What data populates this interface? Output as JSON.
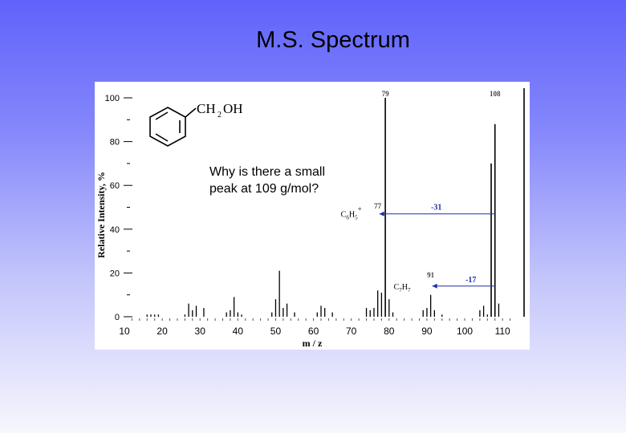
{
  "slide": {
    "title": "M.S. Spectrum",
    "question": "Why is there a small peak at 109 g/mol?"
  },
  "molecule": {
    "formula_main": "CH",
    "formula_sub": "2",
    "formula_tail": "OH"
  },
  "chart_data": {
    "type": "bar",
    "xlabel": "m / z",
    "ylabel": "Relative Intensity, %",
    "xlim": [
      10,
      114
    ],
    "ylim": [
      0,
      100
    ],
    "x_ticks": [
      10,
      20,
      30,
      40,
      50,
      60,
      70,
      80,
      90,
      100,
      110
    ],
    "y_ticks": [
      0,
      20,
      40,
      60,
      80,
      100
    ],
    "peaks": [
      {
        "x": 16,
        "y": 1
      },
      {
        "x": 17,
        "y": 1
      },
      {
        "x": 18,
        "y": 1
      },
      {
        "x": 19,
        "y": 1
      },
      {
        "x": 26,
        "y": 1
      },
      {
        "x": 27,
        "y": 6
      },
      {
        "x": 28,
        "y": 3
      },
      {
        "x": 29,
        "y": 5
      },
      {
        "x": 31,
        "y": 4
      },
      {
        "x": 37,
        "y": 2
      },
      {
        "x": 38,
        "y": 3
      },
      {
        "x": 39,
        "y": 9
      },
      {
        "x": 40,
        "y": 2
      },
      {
        "x": 41,
        "y": 1
      },
      {
        "x": 49,
        "y": 2
      },
      {
        "x": 50,
        "y": 8
      },
      {
        "x": 51,
        "y": 21
      },
      {
        "x": 52,
        "y": 4
      },
      {
        "x": 53,
        "y": 6
      },
      {
        "x": 55,
        "y": 2
      },
      {
        "x": 61,
        "y": 2
      },
      {
        "x": 62,
        "y": 5
      },
      {
        "x": 63,
        "y": 4
      },
      {
        "x": 65,
        "y": 2
      },
      {
        "x": 74,
        "y": 4
      },
      {
        "x": 75,
        "y": 3
      },
      {
        "x": 76,
        "y": 4
      },
      {
        "x": 77,
        "y": 12
      },
      {
        "x": 78,
        "y": 11
      },
      {
        "x": 79,
        "y": 100
      },
      {
        "x": 80,
        "y": 8
      },
      {
        "x": 81,
        "y": 2
      },
      {
        "x": 89,
        "y": 3
      },
      {
        "x": 90,
        "y": 4
      },
      {
        "x": 91,
        "y": 10
      },
      {
        "x": 92,
        "y": 3
      },
      {
        "x": 94,
        "y": 1
      },
      {
        "x": 104,
        "y": 3
      },
      {
        "x": 105,
        "y": 5
      },
      {
        "x": 106,
        "y": 1
      },
      {
        "x": 107,
        "y": 70
      },
      {
        "x": 108,
        "y": 88
      },
      {
        "x": 109,
        "y": 6
      }
    ],
    "peak_labels": [
      {
        "x": 79,
        "text": "79"
      },
      {
        "x": 108,
        "text": "108"
      },
      {
        "x": 77,
        "text": "77"
      },
      {
        "x": 91,
        "text": "91"
      }
    ],
    "annotations": [
      {
        "fragment": "C",
        "sub": "6",
        "sub2": "5",
        "sup": "+",
        "loss_label": "-31",
        "from_x": 108,
        "to_x": 77,
        "level": 47
      },
      {
        "fragment": "C",
        "sub": "7",
        "sub2": "7",
        "sup": "",
        "loss_label": "-17",
        "from_x": 108,
        "to_x": 91,
        "level": 14
      }
    ]
  }
}
